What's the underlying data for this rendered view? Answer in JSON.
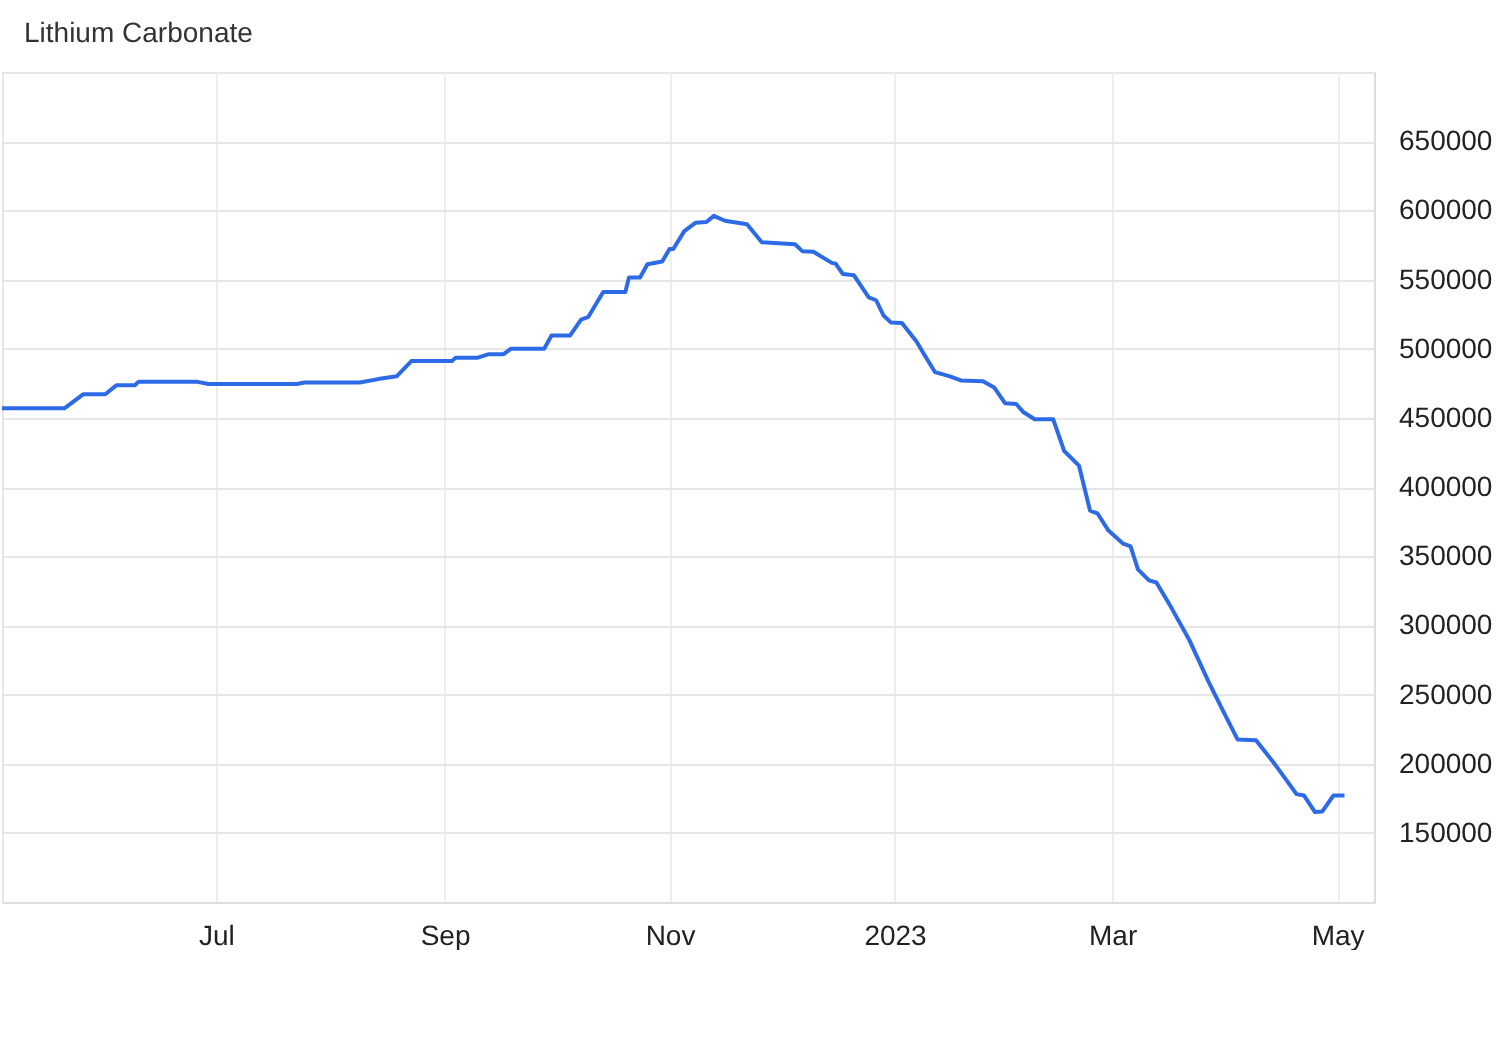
{
  "chart_data": {
    "type": "line",
    "title": "Lithium Carbonate",
    "x": [
      "2022-05-04",
      "2022-05-21",
      "2022-05-26",
      "2022-06-01",
      "2022-06-04",
      "2022-06-09",
      "2022-06-10",
      "2022-06-26",
      "2022-06-29",
      "2022-07-23",
      "2022-07-25",
      "2022-08-09",
      "2022-08-14",
      "2022-08-19",
      "2022-08-23",
      "2022-09-03",
      "2022-09-04",
      "2022-09-10",
      "2022-09-13",
      "2022-09-17",
      "2022-09-19",
      "2022-09-28",
      "2022-09-30",
      "2022-10-05",
      "2022-10-08",
      "2022-10-10",
      "2022-10-14",
      "2022-10-20",
      "2022-10-21",
      "2022-10-24",
      "2022-10-26",
      "2022-10-30",
      "2022-11-01",
      "2022-11-02",
      "2022-11-05",
      "2022-11-08",
      "2022-11-11",
      "2022-11-13",
      "2022-11-16",
      "2022-11-22",
      "2022-11-26",
      "2022-12-05",
      "2022-12-07",
      "2022-12-10",
      "2022-12-15",
      "2022-12-16",
      "2022-12-18",
      "2022-12-21",
      "2022-12-23",
      "2022-12-25",
      "2022-12-27",
      "2022-12-29",
      "2022-12-31",
      "2023-01-03",
      "2023-01-07",
      "2023-01-09",
      "2023-01-12",
      "2023-01-16",
      "2023-01-19",
      "2023-01-25",
      "2023-01-28",
      "2023-01-31",
      "2023-02-03",
      "2023-02-05",
      "2023-02-08",
      "2023-02-13",
      "2023-02-16",
      "2023-02-20",
      "2023-02-23",
      "2023-02-25",
      "2023-02-28",
      "2023-03-04",
      "2023-03-06",
      "2023-03-08",
      "2023-03-11",
      "2023-03-13",
      "2023-03-17",
      "2023-03-22",
      "2023-03-27",
      "2023-03-31",
      "2023-04-04",
      "2023-04-09",
      "2023-04-14",
      "2023-04-20",
      "2023-04-22",
      "2023-04-25",
      "2023-04-27",
      "2023-04-30",
      "2023-05-03"
    ],
    "series": [
      {
        "color": "#2d6be6",
        "values": [
          457000,
          457000,
          467000,
          467000,
          473500,
          473500,
          476000,
          476000,
          474500,
          474500,
          475500,
          475500,
          478000,
          480000,
          491000,
          491000,
          493500,
          493500,
          496000,
          496000,
          500000,
          500000,
          509500,
          509500,
          521000,
          523000,
          541000,
          541000,
          551500,
          551500,
          561000,
          563000,
          572000,
          572000,
          585000,
          591000,
          591500,
          596000,
          592500,
          590000,
          577000,
          575500,
          570500,
          570000,
          562000,
          561500,
          554000,
          553000,
          545000,
          537000,
          535000,
          524000,
          519000,
          518500,
          505000,
          496000,
          483000,
          480000,
          477000,
          476500,
          472000,
          460500,
          460000,
          454000,
          449000,
          449000,
          426000,
          415500,
          383000,
          381000,
          368500,
          359000,
          357000,
          340500,
          332500,
          331000,
          313000,
          289000,
          260000,
          238500,
          217500,
          217000,
          200000,
          178000,
          177000,
          165000,
          165500,
          177000,
          177000
        ]
      }
    ],
    "xlim": [
      "2022-05-04",
      "2023-05-11"
    ],
    "xticks": [
      {
        "value": "2022-07-01",
        "label": "Jul"
      },
      {
        "value": "2022-09-01",
        "label": "Sep"
      },
      {
        "value": "2022-11-01",
        "label": "Nov"
      },
      {
        "value": "2023-01-01",
        "label": "2023"
      },
      {
        "value": "2023-03-01",
        "label": "Mar"
      },
      {
        "value": "2023-05-01",
        "label": "May"
      }
    ],
    "ylim": [
      100000,
      700000
    ],
    "yticks": [
      150000,
      200000,
      250000,
      300000,
      350000,
      400000,
      450000,
      500000,
      550000,
      600000,
      650000
    ],
    "grid": true,
    "legend": false
  }
}
